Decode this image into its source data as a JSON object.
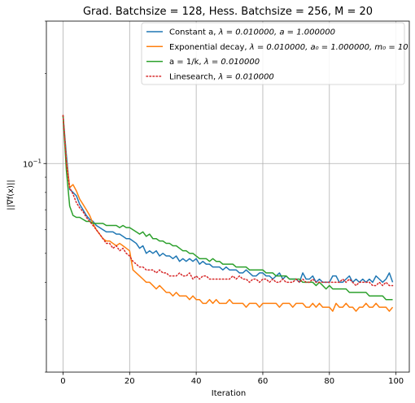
{
  "chart_data": {
    "type": "line",
    "title": "Grad. Batchsize = 128, Hess. Batchsize = 256, M = 20",
    "xlabel": "Iteration",
    "ylabel": "||∇f(x)||",
    "yscale": "log",
    "xlim": [
      -5,
      104
    ],
    "ylim": [
      0.02,
      0.3
    ],
    "xticks": [
      0,
      20,
      40,
      60,
      80,
      100
    ],
    "xtick_labels": [
      "0",
      "20",
      "40",
      "60",
      "80",
      "100"
    ],
    "ytick_label": "10⁻¹",
    "ytick_label_base": "10",
    "ytick_label_exp": "−1",
    "grid": true,
    "legend_position": "top-right",
    "series": [
      {
        "name": "Constant a, λ = 0.010000, a = 1.000000",
        "legend_prefix": "Constant a, ",
        "legend_math": "λ = 0.010000, a = 1.000000",
        "color": "#1f77b4",
        "style": "solid",
        "values": [
          0.145,
          0.107,
          0.082,
          0.08,
          0.078,
          0.073,
          0.07,
          0.067,
          0.065,
          0.064,
          0.062,
          0.061,
          0.06,
          0.059,
          0.059,
          0.059,
          0.058,
          0.058,
          0.057,
          0.056,
          0.056,
          0.055,
          0.054,
          0.052,
          0.053,
          0.05,
          0.051,
          0.05,
          0.051,
          0.049,
          0.05,
          0.049,
          0.049,
          0.048,
          0.049,
          0.047,
          0.048,
          0.047,
          0.048,
          0.047,
          0.048,
          0.046,
          0.047,
          0.046,
          0.046,
          0.045,
          0.045,
          0.045,
          0.044,
          0.045,
          0.044,
          0.044,
          0.044,
          0.043,
          0.043,
          0.044,
          0.043,
          0.042,
          0.042,
          0.043,
          0.043,
          0.042,
          0.042,
          0.041,
          0.042,
          0.043,
          0.041,
          0.042,
          0.041,
          0.041,
          0.041,
          0.04,
          0.043,
          0.041,
          0.041,
          0.042,
          0.04,
          0.041,
          0.04,
          0.04,
          0.04,
          0.042,
          0.042,
          0.04,
          0.04,
          0.041,
          0.042,
          0.04,
          0.041,
          0.04,
          0.041,
          0.04,
          0.041,
          0.04,
          0.042,
          0.041,
          0.04,
          0.041,
          0.043,
          0.04
        ]
      },
      {
        "name": "Exponential decay, λ = 0.010000, a₀ = 1.000000, m₀ = 10",
        "legend_prefix": "Exponential decay, ",
        "legend_math": "λ = 0.010000, a₀ = 1.000000, m₀ = 10",
        "color": "#ff7f0e",
        "style": "solid",
        "values": [
          0.145,
          0.102,
          0.083,
          0.085,
          0.081,
          0.076,
          0.073,
          0.07,
          0.067,
          0.063,
          0.06,
          0.058,
          0.056,
          0.055,
          0.055,
          0.054,
          0.053,
          0.054,
          0.053,
          0.052,
          0.051,
          0.044,
          0.043,
          0.042,
          0.041,
          0.04,
          0.04,
          0.039,
          0.038,
          0.039,
          0.038,
          0.037,
          0.037,
          0.036,
          0.037,
          0.036,
          0.036,
          0.036,
          0.035,
          0.036,
          0.035,
          0.035,
          0.034,
          0.034,
          0.035,
          0.034,
          0.035,
          0.034,
          0.034,
          0.034,
          0.035,
          0.034,
          0.034,
          0.034,
          0.034,
          0.033,
          0.034,
          0.034,
          0.034,
          0.033,
          0.034,
          0.034,
          0.034,
          0.034,
          0.034,
          0.033,
          0.034,
          0.034,
          0.034,
          0.033,
          0.034,
          0.034,
          0.034,
          0.033,
          0.033,
          0.034,
          0.033,
          0.034,
          0.033,
          0.033,
          0.033,
          0.032,
          0.034,
          0.033,
          0.033,
          0.034,
          0.033,
          0.033,
          0.032,
          0.033,
          0.033,
          0.034,
          0.033,
          0.033,
          0.034,
          0.033,
          0.033,
          0.033,
          0.032,
          0.033
        ]
      },
      {
        "name": "a = 1/k, λ = 0.010000",
        "legend_prefix": "a = 1/k, ",
        "legend_math": "λ = 0.010000",
        "color": "#2ca02c",
        "style": "solid",
        "values": [
          0.145,
          0.095,
          0.072,
          0.067,
          0.066,
          0.066,
          0.065,
          0.064,
          0.064,
          0.063,
          0.063,
          0.063,
          0.063,
          0.062,
          0.062,
          0.062,
          0.062,
          0.061,
          0.062,
          0.061,
          0.061,
          0.06,
          0.059,
          0.058,
          0.059,
          0.057,
          0.058,
          0.056,
          0.056,
          0.055,
          0.055,
          0.054,
          0.054,
          0.053,
          0.053,
          0.052,
          0.051,
          0.051,
          0.05,
          0.05,
          0.049,
          0.048,
          0.048,
          0.048,
          0.047,
          0.048,
          0.047,
          0.047,
          0.046,
          0.046,
          0.046,
          0.046,
          0.045,
          0.045,
          0.045,
          0.045,
          0.044,
          0.044,
          0.044,
          0.044,
          0.044,
          0.043,
          0.043,
          0.043,
          0.042,
          0.042,
          0.042,
          0.042,
          0.041,
          0.041,
          0.041,
          0.041,
          0.04,
          0.04,
          0.04,
          0.04,
          0.039,
          0.04,
          0.039,
          0.038,
          0.039,
          0.038,
          0.038,
          0.038,
          0.038,
          0.038,
          0.037,
          0.037,
          0.037,
          0.037,
          0.037,
          0.037,
          0.036,
          0.036,
          0.036,
          0.036,
          0.036,
          0.035,
          0.035,
          0.035
        ]
      },
      {
        "name": "Linesearch, λ = 0.010000",
        "legend_prefix": "Linesearch, ",
        "legend_math": "λ = 0.010000",
        "color": "#d62728",
        "style": "dotted",
        "values": [
          0.145,
          0.1,
          0.083,
          0.079,
          0.074,
          0.071,
          0.069,
          0.066,
          0.064,
          0.062,
          0.06,
          0.058,
          0.056,
          0.054,
          0.054,
          0.052,
          0.053,
          0.051,
          0.052,
          0.05,
          0.049,
          0.047,
          0.046,
          0.045,
          0.045,
          0.044,
          0.044,
          0.044,
          0.043,
          0.044,
          0.043,
          0.043,
          0.042,
          0.042,
          0.042,
          0.043,
          0.042,
          0.042,
          0.043,
          0.041,
          0.042,
          0.041,
          0.042,
          0.042,
          0.041,
          0.041,
          0.041,
          0.041,
          0.041,
          0.041,
          0.041,
          0.042,
          0.041,
          0.042,
          0.041,
          0.041,
          0.04,
          0.041,
          0.041,
          0.04,
          0.041,
          0.041,
          0.04,
          0.041,
          0.04,
          0.04,
          0.041,
          0.04,
          0.04,
          0.04,
          0.041,
          0.04,
          0.041,
          0.04,
          0.04,
          0.041,
          0.04,
          0.04,
          0.04,
          0.04,
          0.04,
          0.04,
          0.04,
          0.04,
          0.041,
          0.04,
          0.041,
          0.04,
          0.039,
          0.04,
          0.04,
          0.04,
          0.04,
          0.039,
          0.039,
          0.04,
          0.039,
          0.04,
          0.039,
          0.039
        ]
      }
    ]
  }
}
